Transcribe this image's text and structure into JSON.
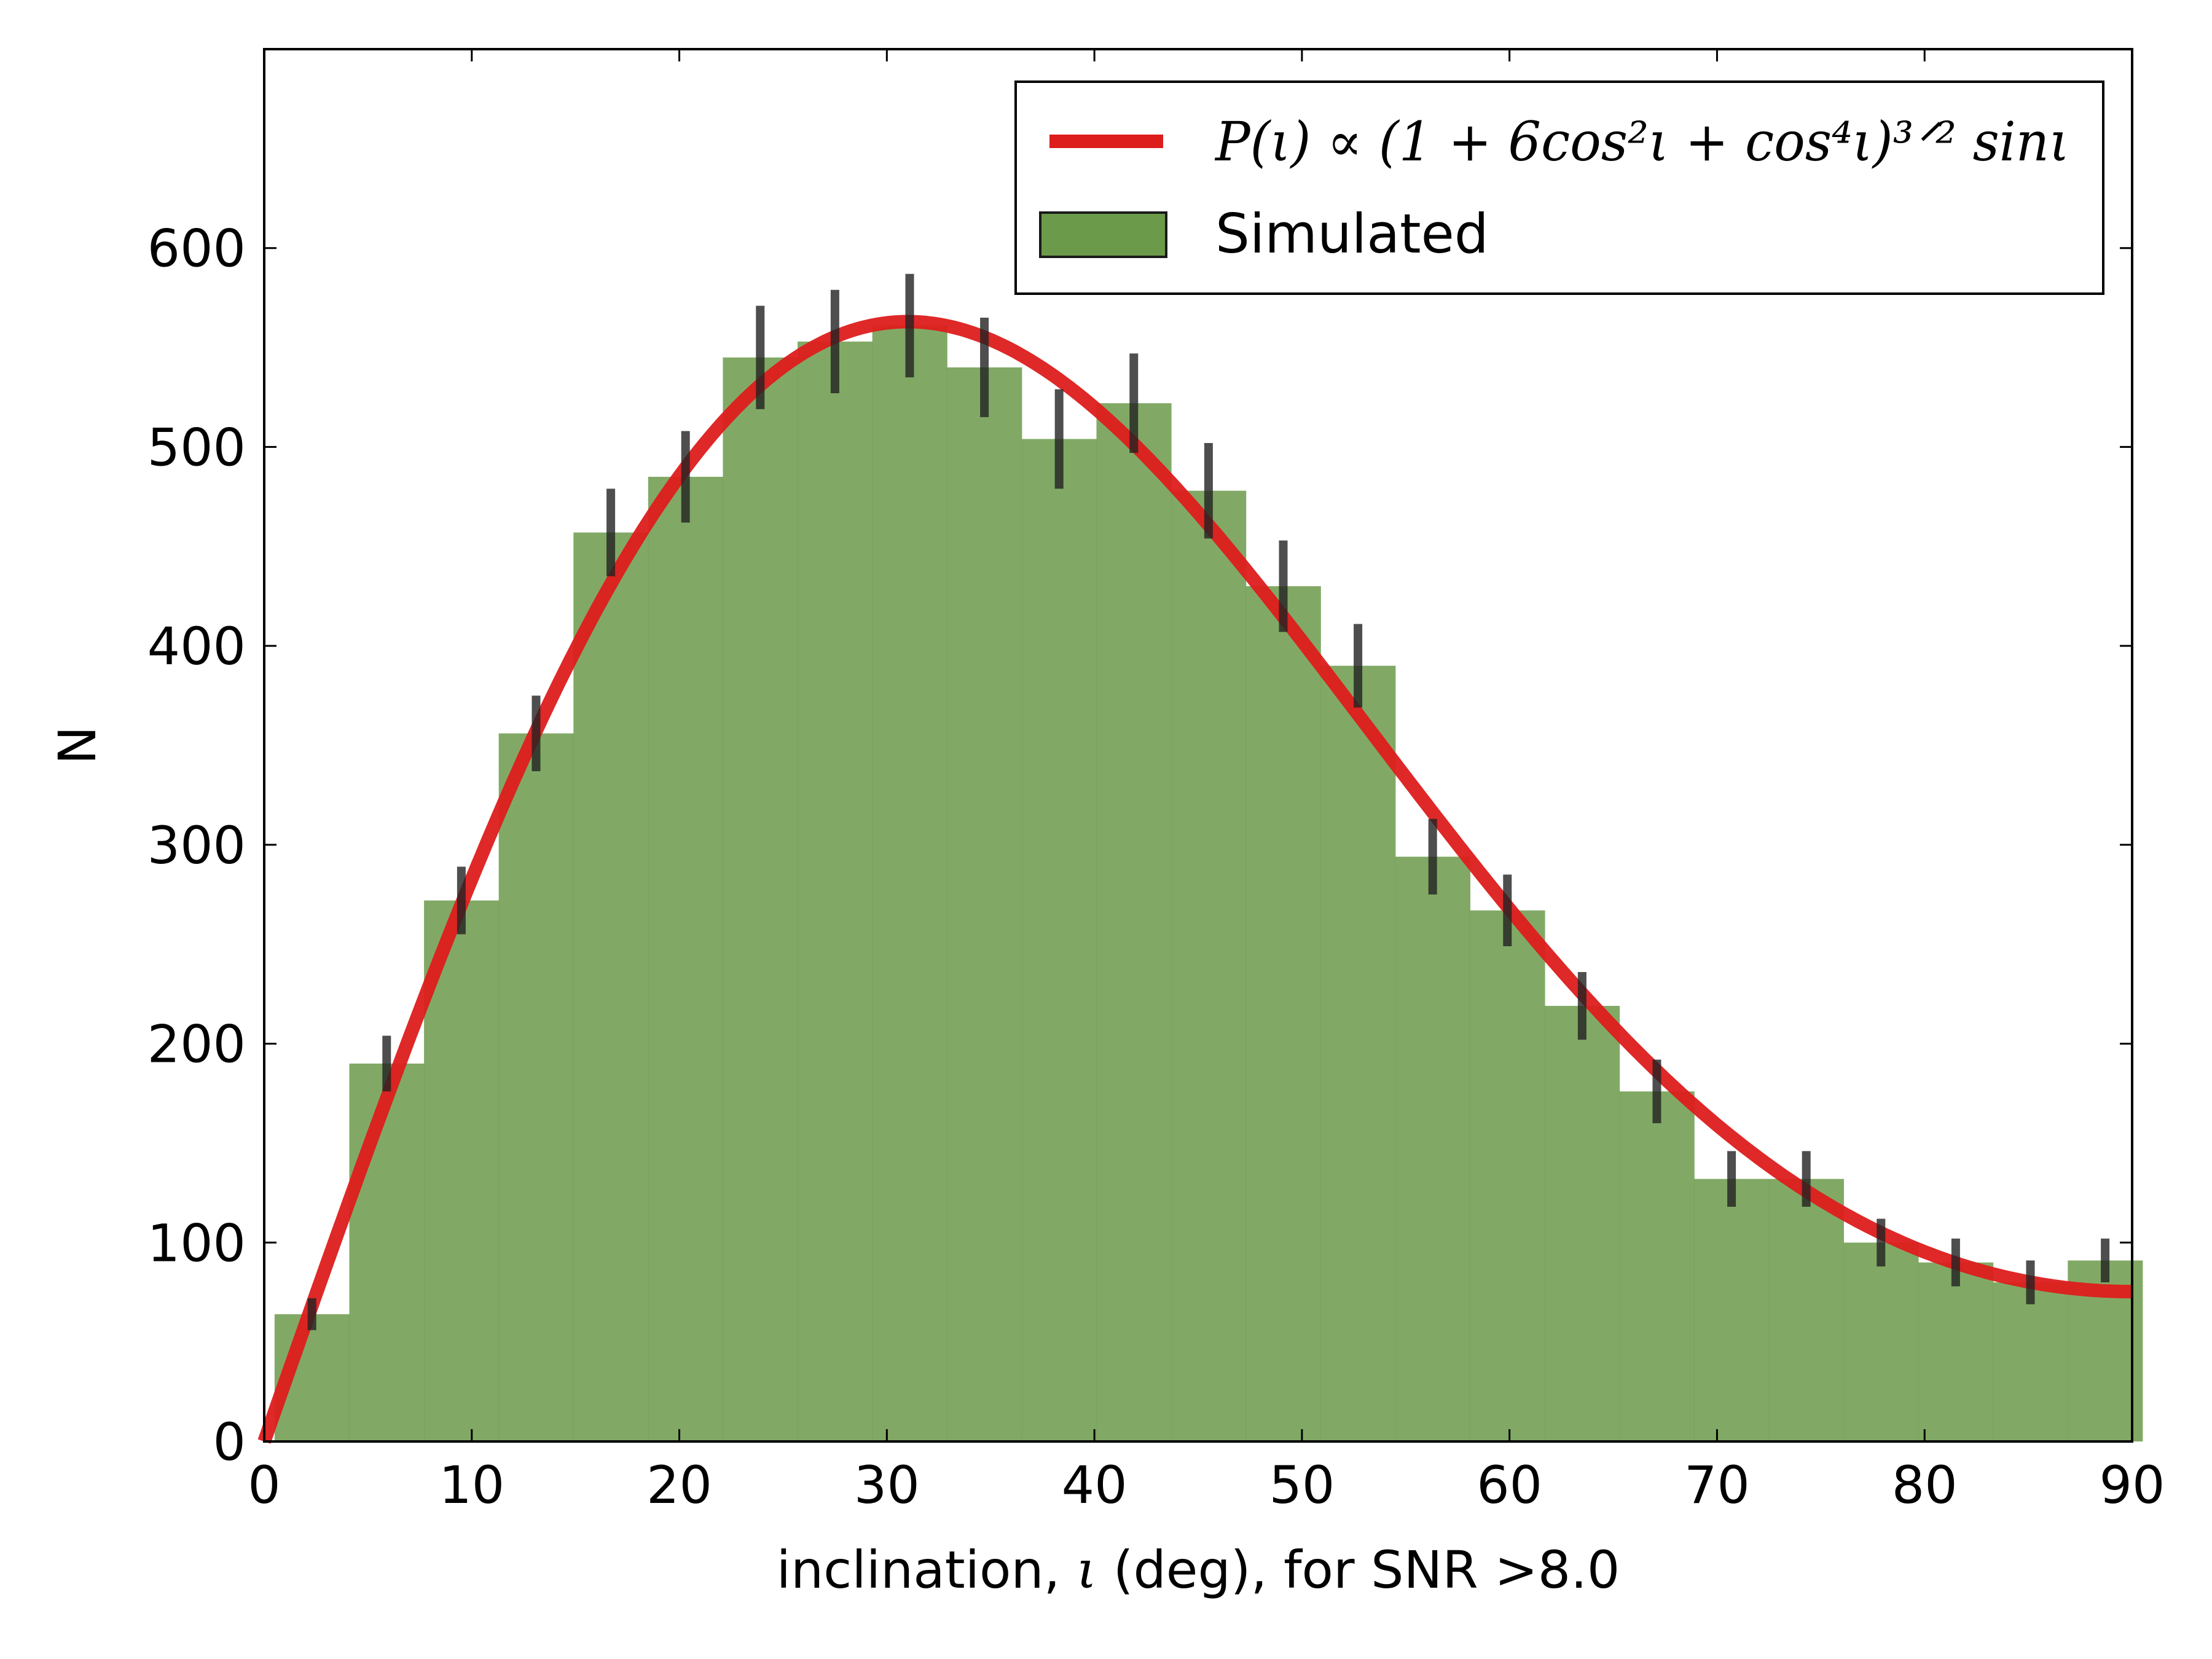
{
  "chart_data": {
    "type": "bar",
    "xlabel_parts": [
      "inclination, ",
      "ι",
      " (deg), for SNR >8.0"
    ],
    "ylabel": "N",
    "xlim": [
      0,
      90
    ],
    "ylim": [
      0,
      700
    ],
    "xticks": [
      0,
      10,
      20,
      30,
      40,
      50,
      60,
      70,
      80,
      90
    ],
    "yticks": [
      0,
      100,
      200,
      300,
      400,
      500,
      600
    ],
    "grid": false,
    "legend_position": "top-right",
    "colors": {
      "histogram": "#6b9a4a",
      "curve": "#dd1c1c",
      "errorbar": "#222222"
    },
    "legend": {
      "curve_formula": "P(ι) ∝ (1 + 6cos²ι + cos⁴ι)³ᐟ² sinι",
      "histogram_label": "Simulated"
    },
    "histogram": {
      "name": "Simulated",
      "bin_edges": [
        0.5,
        4.1,
        7.7,
        11.3,
        14.9,
        18.5,
        22.1,
        25.7,
        29.3,
        32.9,
        36.5,
        40.1,
        43.7,
        47.3,
        50.9,
        54.5,
        58.1,
        61.7,
        65.3,
        68.9,
        72.5,
        76.1,
        79.7,
        83.3,
        86.9,
        90.5
      ],
      "counts": [
        64,
        190,
        272,
        356,
        457,
        485,
        545,
        553,
        561,
        540,
        504,
        522,
        478,
        430,
        390,
        294,
        267,
        219,
        176,
        132,
        132,
        100,
        90,
        80,
        91
      ],
      "errors": [
        8,
        14,
        17,
        19,
        22,
        23,
        26,
        26,
        26,
        25,
        25,
        25,
        24,
        23,
        21,
        19,
        18,
        17,
        16,
        14,
        14,
        12,
        12,
        11,
        11
      ]
    },
    "curve": {
      "name": "P(ι) ∝ (1 + 6cos²ι + cos⁴ι)^(3/2) sinι",
      "peak": 563
    }
  }
}
